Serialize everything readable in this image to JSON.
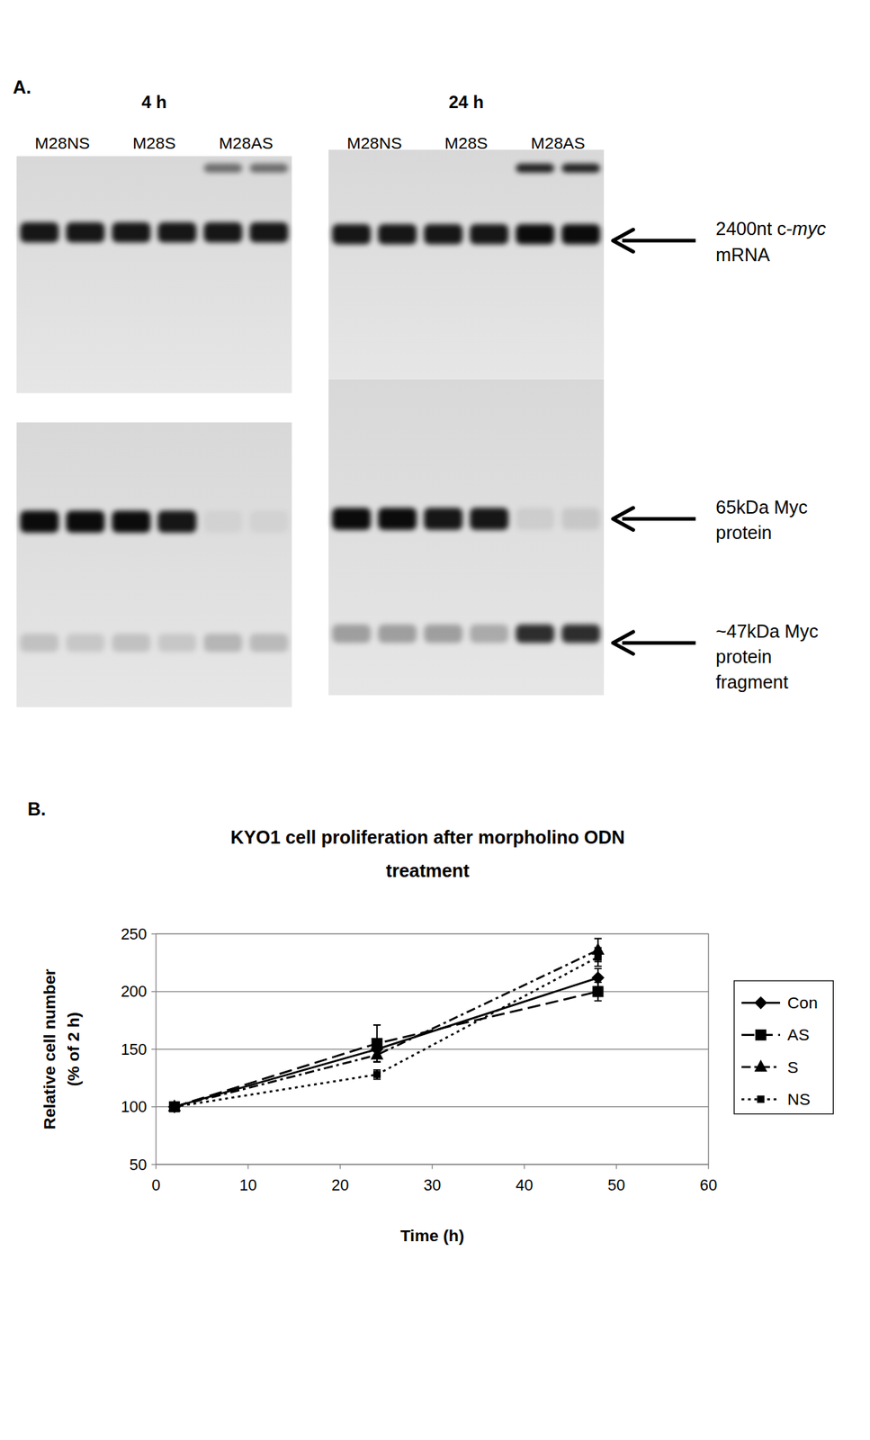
{
  "panel_a": {
    "label": "A.",
    "gels": [
      {
        "time": "4 h",
        "lanes": [
          "M28NS",
          "M28S",
          "M28AS"
        ],
        "upper": [
          0,
          0,
          0,
          0,
          0.5,
          0.5
        ],
        "mrna": [
          0.9,
          0.9,
          0.9,
          0.9,
          0.9,
          0.9
        ],
        "protein": [
          0.95,
          0.95,
          0.95,
          0.9,
          0.05,
          0.05
        ],
        "fragment": [
          0.15,
          0.12,
          0.15,
          0.12,
          0.2,
          0.18
        ]
      },
      {
        "time": "24 h",
        "lanes": [
          "M28NS",
          "M28S",
          "M28AS"
        ],
        "upper": [
          0,
          0,
          0,
          0,
          0.85,
          0.85
        ],
        "mrna": [
          0.9,
          0.9,
          0.9,
          0.9,
          0.95,
          0.95
        ],
        "protein": [
          0.95,
          0.95,
          0.9,
          0.9,
          0.08,
          0.1
        ],
        "fragment": [
          0.3,
          0.3,
          0.3,
          0.25,
          0.8,
          0.8
        ]
      }
    ],
    "markers": [
      {
        "lines": [
          [
            {
              "text": "2400nt c-"
            },
            {
              "text": "myc",
              "italic": true
            }
          ],
          [
            {
              "text": "mRNA"
            }
          ]
        ]
      },
      {
        "lines": [
          [
            {
              "text": "65kDa Myc"
            }
          ],
          [
            {
              "text": "protein"
            }
          ]
        ]
      },
      {
        "lines": [
          [
            {
              "text": "~47kDa Myc"
            }
          ],
          [
            {
              "text": "protein"
            }
          ],
          [
            {
              "text": "fragment"
            }
          ]
        ]
      }
    ]
  },
  "chart_data": {
    "type": "line",
    "panel_label": "B.",
    "title": [
      "KYO1 cell proliferation after morpholino ODN",
      "treatment"
    ],
    "x_label": "Time (h)",
    "y_label": [
      "Relative cell number",
      "(% of 2 h)"
    ],
    "x": [
      2,
      24,
      48
    ],
    "series": [
      {
        "name": "Con",
        "color": "#000000",
        "marker": "diamond",
        "line_style": "solid",
        "values": [
          100,
          150,
          212
        ],
        "errors": [
          2,
          5,
          8
        ]
      },
      {
        "name": "AS",
        "color": "#000000",
        "marker": "square",
        "line_style": "long_dash",
        "values": [
          100,
          155,
          200
        ],
        "errors": [
          3,
          16,
          8
        ]
      },
      {
        "name": "S",
        "color": "#000000",
        "marker": "triangle",
        "line_style": "dash_dot",
        "values": [
          100,
          145,
          236
        ],
        "errors": [
          2,
          6,
          10
        ]
      },
      {
        "name": "NS",
        "color": "#000000",
        "marker": "small_square",
        "line_style": "dotted",
        "values": [
          100,
          128,
          230
        ],
        "errors": [
          2,
          4,
          8
        ]
      }
    ],
    "xlim": [
      0,
      60
    ],
    "xticks": [
      0,
      10,
      20,
      30,
      40,
      50,
      60
    ],
    "ylim": [
      50,
      250
    ],
    "yticks": [
      50,
      100,
      150,
      200,
      250
    ],
    "grid": true,
    "legend": "right"
  }
}
